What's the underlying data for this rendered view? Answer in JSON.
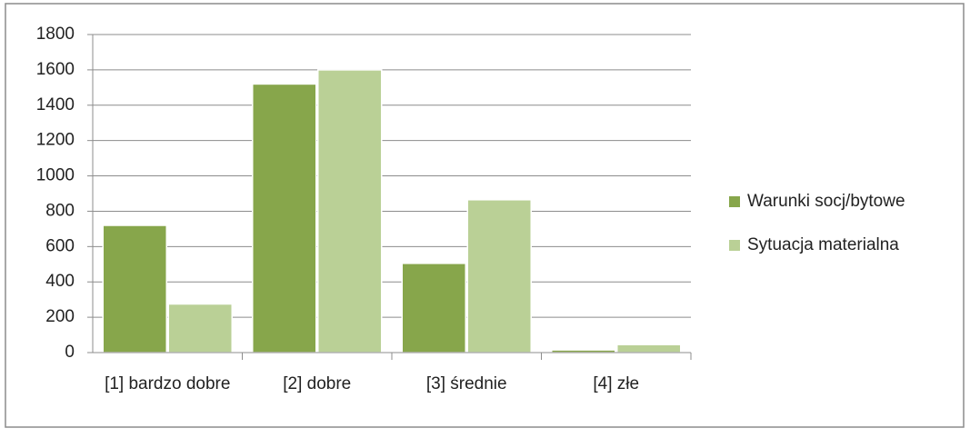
{
  "chart_data": {
    "type": "bar",
    "categories": [
      "[1] bardzo dobre",
      "[2] dobre",
      "[3] średnie",
      "[4] złe"
    ],
    "series": [
      {
        "name": "Warunki socj/bytowe",
        "color": "#87a64b",
        "values": [
          720,
          1520,
          505,
          15
        ]
      },
      {
        "name": "Sytuacja materialna",
        "color": "#bad096",
        "values": [
          275,
          1600,
          865,
          45
        ]
      }
    ],
    "ylim": [
      0,
      1800
    ],
    "yticks": [
      0,
      200,
      400,
      600,
      800,
      1000,
      1200,
      1400,
      1600,
      1800
    ],
    "grid": true,
    "legend": "right"
  }
}
